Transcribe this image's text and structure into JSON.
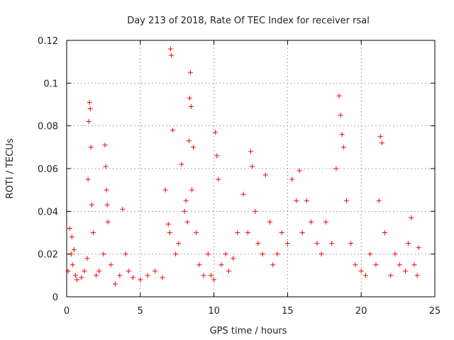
{
  "chart_data": {
    "type": "scatter",
    "title": "Day 213 of 2018, Rate Of TEC Index for receiver rsal",
    "xlabel": "GPS time / hours",
    "ylabel": "ROTI / TECUs",
    "xlim": [
      0,
      25
    ],
    "ylim": [
      0,
      0.12
    ],
    "x_ticks": [
      0,
      5,
      10,
      15,
      20,
      25
    ],
    "x_tick_labels": [
      "0",
      "5",
      "10",
      "15",
      "20",
      "25"
    ],
    "y_ticks": [
      0,
      0.02,
      0.04,
      0.06,
      0.08,
      0.1,
      0.12
    ],
    "y_tick_labels": [
      "0",
      "0.02",
      "0.04",
      "0.06",
      "0.08",
      "0.1",
      "0.12"
    ],
    "grid": true,
    "marker": "plus",
    "color": "#ff0000",
    "series": [
      {
        "name": "ROTI",
        "x": [
          0.1,
          0.2,
          0.3,
          0.35,
          0.4,
          0.5,
          0.6,
          0.7,
          1.0,
          1.2,
          1.4,
          1.45,
          1.5,
          1.55,
          1.6,
          1.65,
          1.7,
          1.8,
          2.0,
          2.2,
          2.5,
          2.6,
          2.65,
          2.7,
          2.75,
          2.8,
          3.0,
          3.3,
          3.6,
          3.8,
          4.0,
          4.2,
          4.5,
          5.0,
          5.5,
          6.0,
          6.5,
          6.7,
          6.9,
          7.0,
          7.05,
          7.1,
          7.2,
          7.4,
          7.6,
          7.8,
          8.0,
          8.1,
          8.2,
          8.3,
          8.35,
          8.4,
          8.45,
          8.5,
          8.6,
          8.8,
          9.0,
          9.3,
          9.6,
          9.8,
          10.0,
          10.1,
          10.2,
          10.3,
          10.5,
          10.8,
          11.0,
          11.3,
          11.6,
          12.0,
          12.3,
          12.5,
          12.6,
          12.8,
          13.0,
          13.3,
          13.5,
          13.8,
          14.0,
          14.3,
          14.6,
          15.0,
          15.3,
          15.6,
          15.8,
          16.0,
          16.3,
          16.6,
          17.0,
          17.3,
          17.6,
          18.0,
          18.3,
          18.5,
          18.6,
          18.7,
          18.8,
          19.0,
          19.3,
          19.6,
          20.0,
          20.3,
          20.6,
          21.0,
          21.2,
          21.3,
          21.4,
          21.6,
          22.0,
          22.3,
          22.6,
          23.0,
          23.2,
          23.4,
          23.6,
          23.8,
          23.9
        ],
        "y": [
          0.012,
          0.032,
          0.02,
          0.028,
          0.015,
          0.022,
          0.01,
          0.008,
          0.009,
          0.012,
          0.018,
          0.055,
          0.082,
          0.091,
          0.088,
          0.07,
          0.043,
          0.03,
          0.01,
          0.012,
          0.02,
          0.071,
          0.061,
          0.05,
          0.043,
          0.035,
          0.015,
          0.006,
          0.01,
          0.041,
          0.02,
          0.012,
          0.009,
          0.008,
          0.01,
          0.012,
          0.009,
          0.05,
          0.034,
          0.03,
          0.116,
          0.113,
          0.078,
          0.02,
          0.025,
          0.062,
          0.04,
          0.045,
          0.035,
          0.073,
          0.093,
          0.105,
          0.089,
          0.05,
          0.07,
          0.03,
          0.015,
          0.01,
          0.02,
          0.01,
          0.008,
          0.077,
          0.066,
          0.055,
          0.015,
          0.02,
          0.012,
          0.018,
          0.03,
          0.048,
          0.03,
          0.068,
          0.061,
          0.04,
          0.025,
          0.02,
          0.057,
          0.035,
          0.015,
          0.02,
          0.03,
          0.025,
          0.055,
          0.045,
          0.059,
          0.03,
          0.045,
          0.035,
          0.025,
          0.02,
          0.035,
          0.025,
          0.06,
          0.094,
          0.085,
          0.076,
          0.07,
          0.045,
          0.025,
          0.015,
          0.012,
          0.01,
          0.02,
          0.015,
          0.045,
          0.075,
          0.072,
          0.03,
          0.01,
          0.02,
          0.015,
          0.012,
          0.025,
          0.037,
          0.015,
          0.01,
          0.023
        ]
      }
    ]
  }
}
